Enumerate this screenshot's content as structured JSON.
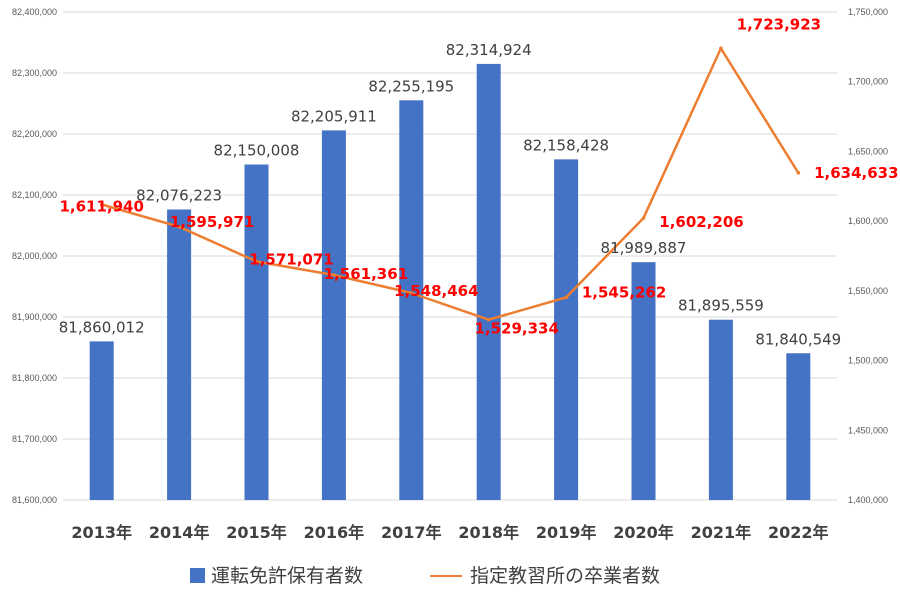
{
  "chart_data": {
    "type": "bar+line",
    "categories": [
      "2013年",
      "2014年",
      "2015年",
      "2016年",
      "2017年",
      "2018年",
      "2019年",
      "2020年",
      "2021年",
      "2022年"
    ],
    "series": [
      {
        "name": "運転免許保有者数",
        "type": "bar",
        "axis": "left",
        "color": "#4472c4",
        "values": [
          81860012,
          82076223,
          82150008,
          82205911,
          82255195,
          82314924,
          82158428,
          81989887,
          81895559,
          81840549
        ],
        "labels": [
          "81,860,012",
          "82,076,223",
          "82,150,008",
          "82,205,911",
          "82,255,195",
          "82,314,924",
          "82,158,428",
          "81,989,887",
          "81,895,559",
          "81,840,549"
        ]
      },
      {
        "name": "指定教習所の卒業者数",
        "type": "line",
        "axis": "right",
        "color": "#ed7d31",
        "label_color": "#ff0000",
        "values": [
          1611940,
          1595971,
          1571071,
          1561361,
          1548464,
          1529334,
          1545262,
          1602206,
          1723923,
          1634633
        ],
        "labels": [
          "1,611,940",
          "1,595,971",
          "1,571,071",
          "1,561,361",
          "1,548,464",
          "1,529,334",
          "1,545,262",
          "1,602,206",
          "1,723,923",
          "1,634,633"
        ]
      }
    ],
    "y_left": {
      "range": [
        81600000,
        82400000
      ],
      "ticks": [
        "81,600,000",
        "81,700,000",
        "81,800,000",
        "81,900,000",
        "82,000,000",
        "82,100,000",
        "82,200,000",
        "82,300,000",
        "82,400,000"
      ]
    },
    "y_right": {
      "range": [
        1400000,
        1750000
      ],
      "ticks": [
        "1,400,000",
        "1,450,000",
        "1,500,000",
        "1,550,000",
        "1,600,000",
        "1,650,000",
        "1,700,000",
        "1,750,000"
      ]
    },
    "grid": true,
    "legend_position": "bottom"
  }
}
